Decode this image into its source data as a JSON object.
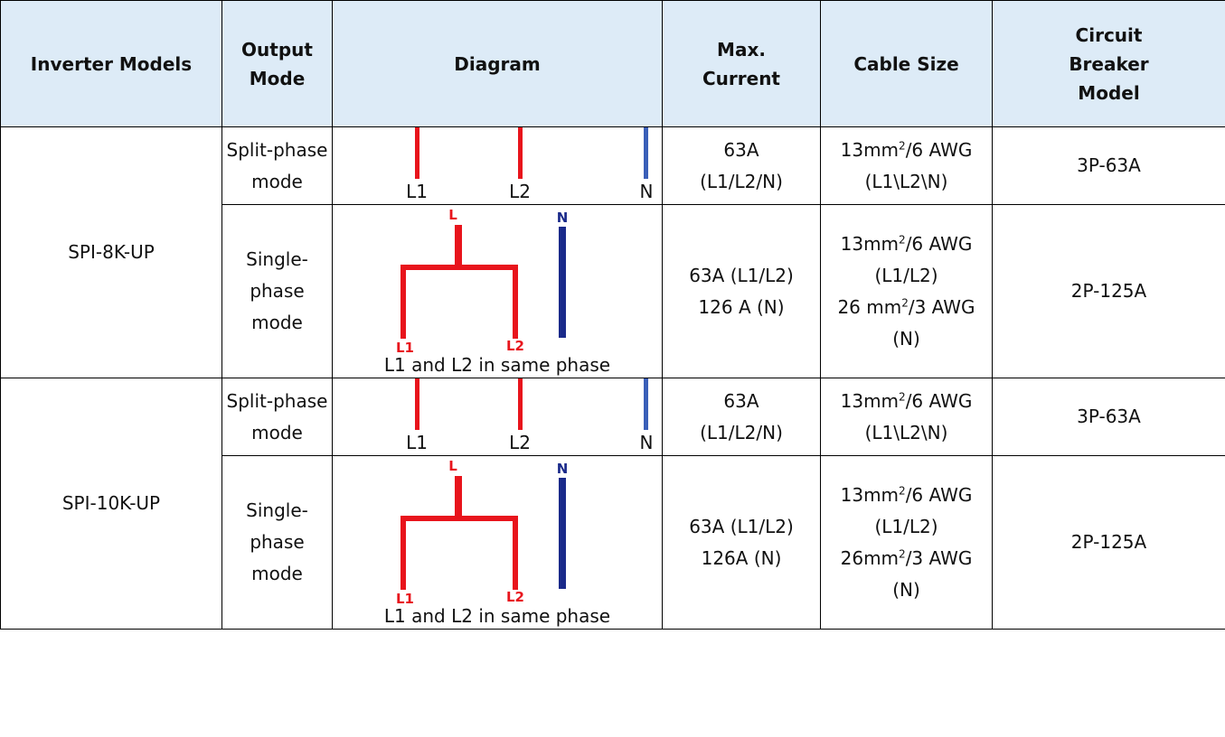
{
  "header": {
    "model": "Inverter Models",
    "output_mode": [
      "Output",
      "Mode"
    ],
    "diagram": "Diagram",
    "max_current": [
      "Max.",
      "Current"
    ],
    "cable_size": "Cable Size",
    "breaker": [
      "Circuit",
      "Breaker",
      "Model"
    ]
  },
  "colors": {
    "line": "#e8141c",
    "neutral_split": "#3a5fb8",
    "neutral_single": "#1a2a8a",
    "header_bg": "#ddebf7"
  },
  "rows": [
    {
      "model": "SPI-8K-UP",
      "split": {
        "mode": [
          "Split-phase",
          "mode"
        ],
        "labels": [
          "L1",
          "L2",
          "N"
        ],
        "current": [
          "63A",
          "(L1/L2/N)"
        ],
        "cable": {
          "size": "13mm",
          "exp": "2",
          "rest": "/6 AWG",
          "note": "(L1\\L2\\N)"
        },
        "breaker": "3P-63A"
      },
      "single": {
        "mode": [
          "Single-phase",
          "mode"
        ],
        "labels": {
          "top": "L",
          "n": "N",
          "l1": "L1",
          "l2": "L2"
        },
        "caption": "L1 and L2 in same phase",
        "current": [
          "63A (L1/L2)",
          "126 A (N)"
        ],
        "cable": [
          {
            "size": "13mm",
            "exp": "2",
            "rest": "/6 AWG"
          },
          {
            "text": "(L1/L2)"
          },
          {
            "size": "26 mm",
            "exp": "2",
            "rest": "/3 AWG"
          },
          {
            "text": "(N)"
          }
        ],
        "breaker": "2P-125A"
      }
    },
    {
      "model": "SPI-10K-UP",
      "split": {
        "mode": [
          "Split-phase",
          "mode"
        ],
        "labels": [
          "L1",
          "L2",
          "N"
        ],
        "current": [
          "63A",
          "(L1/L2/N)"
        ],
        "cable": {
          "size": "13mm",
          "exp": "2",
          "rest": "/6 AWG",
          "note": "(L1\\L2\\N)"
        },
        "breaker": "3P-63A"
      },
      "single": {
        "mode": [
          "Single-phase",
          "mode"
        ],
        "labels": {
          "top": "L",
          "n": "N",
          "l1": "L1",
          "l2": "L2"
        },
        "caption": "L1 and L2 in same phase",
        "current": [
          "63A (L1/L2)",
          "126A (N)"
        ],
        "cable": [
          {
            "size": "13mm",
            "exp": "2",
            "rest": "/6 AWG"
          },
          {
            "text": "(L1/L2)"
          },
          {
            "size": "26mm",
            "exp": "2",
            "rest": "/3 AWG"
          },
          {
            "text": "(N)"
          }
        ],
        "breaker": "2P-125A"
      }
    }
  ]
}
